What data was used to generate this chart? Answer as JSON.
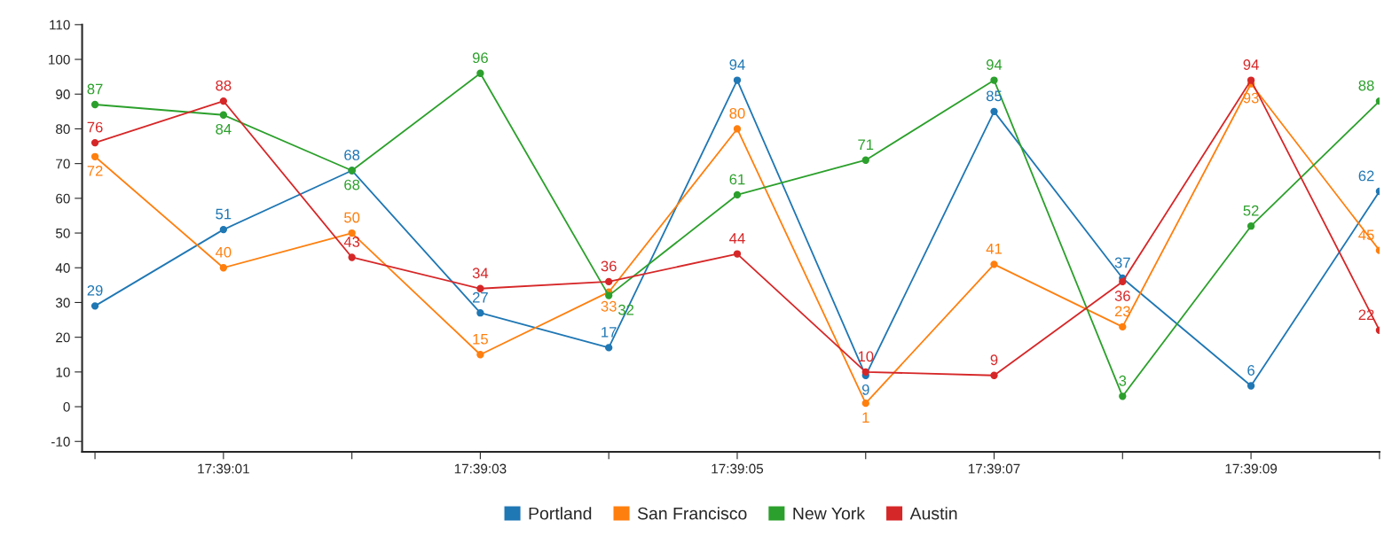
{
  "chart_data": {
    "type": "line",
    "x": [
      17.65,
      17.6502778,
      17.6505556,
      17.6508333,
      17.6511111,
      17.6513889,
      17.6516667,
      17.6519444,
      17.6522222,
      17.6525,
      17.6527778
    ],
    "series": [
      {
        "name": "Portland",
        "color": "#1f77b4",
        "values": [
          29,
          51,
          68,
          27,
          17,
          94,
          9,
          85,
          37,
          6,
          62
        ]
      },
      {
        "name": "San Francisco",
        "color": "#ff7f0e",
        "values": [
          72,
          40,
          50,
          15,
          33,
          80,
          1,
          41,
          23,
          93,
          45
        ]
      },
      {
        "name": "New York",
        "color": "#2ca02c",
        "values": [
          87,
          84,
          68,
          96,
          32,
          61,
          71,
          94,
          3,
          52,
          88
        ]
      },
      {
        "name": "Austin",
        "color": "#d62728",
        "values": [
          76,
          88,
          43,
          34,
          36,
          44,
          10,
          9,
          36,
          94,
          22
        ]
      }
    ],
    "xlim": [
      17.6499722,
      17.6527778
    ],
    "xticks": [
      {
        "value": 17.65,
        "label": null
      },
      {
        "value": 17.6502778,
        "label": "17:39:01"
      },
      {
        "value": 17.6505556,
        "label": null
      },
      {
        "value": 17.6508333,
        "label": "17:39:03"
      },
      {
        "value": 17.6511111,
        "label": null
      },
      {
        "value": 17.6513889,
        "label": "17:39:05"
      },
      {
        "value": 17.6516667,
        "label": null
      },
      {
        "value": 17.6519444,
        "label": "17:39:07"
      },
      {
        "value": 17.6522222,
        "label": null
      },
      {
        "value": 17.6525,
        "label": "17:39:09"
      },
      {
        "value": 17.6527778,
        "label": null
      }
    ],
    "ylim": [
      -13,
      110
    ],
    "yticks": [
      -10,
      0,
      10,
      20,
      30,
      40,
      50,
      60,
      70,
      80,
      90,
      100,
      110
    ],
    "data_labels": true,
    "marker": "circle",
    "line_style": "solid",
    "grid": false,
    "legend": "bottom"
  }
}
